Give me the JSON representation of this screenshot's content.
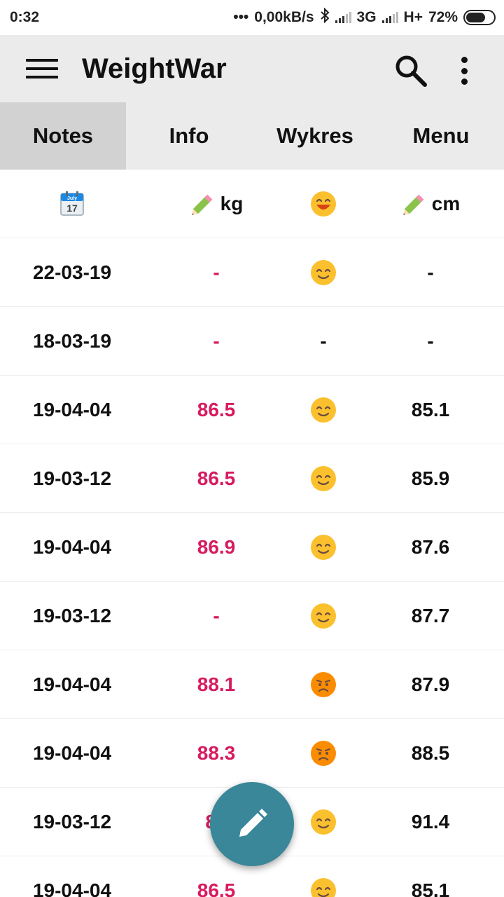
{
  "status_bar": {
    "time": "0:32",
    "dots": "•••",
    "speed": "0,00kB/s",
    "network1": "3G",
    "network2": "H+",
    "battery": "72%",
    "battery_level": 0.72
  },
  "app_bar": {
    "title": "WeightWar",
    "menu_icon": "hamburger-icon",
    "search_icon": "search-icon",
    "more_icon": "more-vert-icon"
  },
  "tabs": [
    {
      "label": "Notes",
      "active": true
    },
    {
      "label": "Info",
      "active": false
    },
    {
      "label": "Wykres",
      "active": false
    },
    {
      "label": "Menu",
      "active": false
    }
  ],
  "table": {
    "header": {
      "date_icon": "calendar-icon",
      "calendar_month": "July",
      "calendar_day": "17",
      "weight_icon": "pencil-icon",
      "weight_unit": "kg",
      "mood_icon": "laughing-face-icon",
      "waist_icon": "pencil-icon",
      "waist_unit": "cm"
    },
    "rows": [
      {
        "date": "22-03-19",
        "kg": "-",
        "mood": "smile",
        "cm": "-"
      },
      {
        "date": "18-03-19",
        "kg": "-",
        "mood": "-",
        "cm": "-"
      },
      {
        "date": "19-04-04",
        "kg": "86.5",
        "mood": "smile",
        "cm": "85.1"
      },
      {
        "date": "19-03-12",
        "kg": "86.5",
        "mood": "smile",
        "cm": "85.9"
      },
      {
        "date": "19-04-04",
        "kg": "86.9",
        "mood": "smile",
        "cm": "87.6"
      },
      {
        "date": "19-03-12",
        "kg": "-",
        "mood": "smile",
        "cm": "87.7"
      },
      {
        "date": "19-04-04",
        "kg": "88.1",
        "mood": "frown",
        "cm": "87.9"
      },
      {
        "date": "19-04-04",
        "kg": "88.3",
        "mood": "frown",
        "cm": "88.5"
      },
      {
        "date": "19-03-12",
        "kg": "88",
        "mood": "smile",
        "cm": "91.4"
      },
      {
        "date": "19-04-04",
        "kg": "86.5",
        "mood": "smile",
        "cm": "85.1"
      }
    ]
  },
  "fab": {
    "icon": "pencil-icon"
  },
  "colors": {
    "app_bar_bg": "#ebebeb",
    "active_tab_bg": "#d2d2d2",
    "weight_text": "#d81b60",
    "fab": "#3a8799",
    "emoji_yellow": "#fbc02d"
  }
}
